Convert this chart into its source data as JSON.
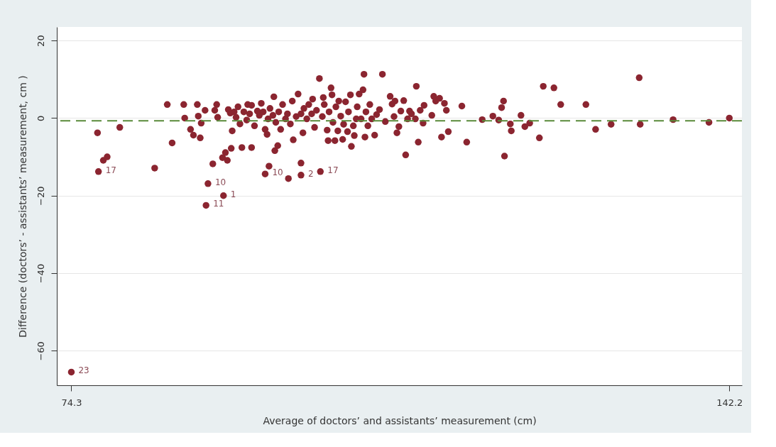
{
  "chart_data": {
    "type": "scatter",
    "xlabel": "Average of doctors’ and assistants’ measurement (cm)",
    "ylabel": "Difference (doctors’ - assistants’ measurement, cm )",
    "x": [
      74.3,
      77.0,
      77.1,
      77.6,
      78.0,
      79.3,
      82.9,
      84.2,
      84.7,
      85.9,
      86.0,
      86.6,
      86.9,
      87.3,
      87.4,
      87.6,
      87.7,
      88.1,
      88.2,
      88.4,
      90.0,
      88.9,
      89.1,
      89.3,
      89.4,
      89.9,
      90.2,
      90.4,
      90.5,
      90.7,
      90.8,
      90.9,
      91.1,
      91.3,
      91.5,
      91.7,
      91.9,
      92.1,
      92.4,
      92.5,
      92.7,
      92.9,
      92.9,
      93.2,
      93.5,
      93.7,
      93.9,
      94.1,
      94.3,
      94.3,
      94.5,
      94.6,
      94.7,
      94.8,
      95.1,
      95.2,
      95.3,
      95.4,
      95.6,
      95.7,
      95.9,
      96.1,
      96.4,
      96.6,
      96.7,
      96.9,
      97.1,
      97.2,
      97.5,
      97.7,
      98.0,
      98.0,
      98.0,
      98.2,
      98.3,
      98.6,
      98.8,
      99.1,
      99.2,
      99.4,
      99.6,
      99.9,
      100.0,
      100.2,
      100.3,
      100.4,
      100.7,
      100.8,
      100.9,
      101.1,
      101.2,
      101.3,
      101.5,
      101.6,
      101.8,
      101.9,
      102.1,
      102.3,
      102.4,
      102.6,
      102.8,
      102.9,
      103.1,
      103.2,
      103.4,
      103.5,
      103.7,
      103.8,
      104.0,
      104.2,
      104.4,
      104.5,
      104.6,
      104.7,
      104.9,
      105.1,
      105.3,
      105.6,
      105.8,
      106.1,
      106.4,
      106.7,
      107.2,
      107.4,
      107.6,
      107.7,
      107.9,
      108.1,
      108.3,
      108.6,
      108.8,
      109.0,
      109.2,
      109.4,
      109.8,
      109.9,
      110.1,
      110.3,
      110.6,
      110.7,
      111.5,
      111.7,
      111.9,
      112.3,
      112.5,
      112.8,
      113.0,
      113.2,
      114.6,
      115.1,
      116.7,
      117.8,
      118.4,
      118.7,
      118.9,
      119.0,
      119.6,
      119.7,
      120.7,
      121.1,
      121.6,
      122.6,
      123.0,
      124.1,
      124.8,
      127.4,
      128.4,
      130.0,
      132.9,
      133.0,
      136.4,
      140.1,
      142.2
    ],
    "series": [
      {
        "color": "#8b2530",
        "values": [
          -65.5,
          -3.8,
          -13.8,
          -10.9,
          -10.0,
          -2.4,
          -12.9,
          3.5,
          -6.4,
          3.5,
          0,
          -2.9,
          -4.4,
          3.5,
          0.5,
          -5.1,
          -1.3,
          2.0,
          -22.5,
          -16.9,
          -20.0,
          -11.8,
          2.0,
          3.5,
          0.2,
          -10.2,
          -8.9,
          -10.9,
          2.2,
          1.3,
          -7.8,
          -3.3,
          1.6,
          0.2,
          2.9,
          -1.5,
          -7.6,
          1.6,
          -0.5,
          3.5,
          1.1,
          -7.6,
          3.3,
          -2.0,
          1.8,
          0.7,
          3.8,
          1.6,
          -14.4,
          -2.9,
          -4.2,
          -0.2,
          -12.4,
          2.5,
          0.7,
          5.5,
          -8.4,
          -1.1,
          -7.1,
          1.6,
          -2.9,
          3.5,
          -0.2,
          1.1,
          -15.6,
          -1.5,
          4.4,
          -5.6,
          0.4,
          6.2,
          1.1,
          -11.6,
          -14.7,
          -3.8,
          2.5,
          -0.2,
          3.5,
          1.1,
          4.9,
          -2.4,
          2.0,
          10.2,
          -13.8,
          0.4,
          5.3,
          3.5,
          -3.1,
          -5.8,
          1.6,
          7.8,
          6.0,
          -1.1,
          -5.8,
          2.9,
          -3.3,
          4.4,
          0.5,
          -5.5,
          -1.6,
          4.2,
          -3.5,
          1.6,
          6.0,
          -7.3,
          -2.0,
          -4.5,
          -0.2,
          2.9,
          6.2,
          -0.2,
          7.3,
          11.3,
          -4.9,
          1.6,
          -2.0,
          3.5,
          -0.2,
          -4.4,
          0.9,
          2.2,
          11.3,
          -0.9,
          5.6,
          3.6,
          0.4,
          4.4,
          -3.8,
          -2.2,
          1.8,
          4.5,
          -9.5,
          -0.2,
          1.8,
          1.1,
          -0.2,
          8.2,
          -6.2,
          2.0,
          -1.3,
          3.3,
          0.7,
          5.6,
          4.4,
          5.1,
          -4.9,
          3.8,
          2.0,
          -3.5,
          3.1,
          -6.2,
          -0.4,
          0.5,
          -0.5,
          2.7,
          4.4,
          -9.8,
          -1.5,
          -3.3,
          0.7,
          -2.2,
          -1.3,
          -5.1,
          8.2,
          7.8,
          3.5,
          3.5,
          -2.9,
          -1.6,
          10.4,
          -1.6,
          -0.4,
          -1.1,
          0
        ]
      }
    ],
    "marker": "circle",
    "grid": "y",
    "xlim": [
      72.8,
      143.5
    ],
    "ylim": [
      -68.9,
      23.5
    ],
    "xticks": [
      74.3,
      142.2
    ],
    "yticks": [
      -60,
      -40,
      -20,
      0,
      20
    ],
    "ref_lines": [
      {
        "axis": "y",
        "value": -0.7,
        "color": "#5a8a3a",
        "line_style": "dashed"
      }
    ],
    "annotations": [
      {
        "text": "23",
        "x": 74.3,
        "y": -65.5
      },
      {
        "text": "17",
        "x": 77.1,
        "y": -13.8
      },
      {
        "text": "10",
        "x": 88.4,
        "y": -16.9
      },
      {
        "text": "1",
        "x": 90.0,
        "y": -20.0
      },
      {
        "text": "11",
        "x": 88.2,
        "y": -22.5
      },
      {
        "text": "10",
        "x": 94.3,
        "y": -14.4
      },
      {
        "text": "2",
        "x": 98.0,
        "y": -14.7
      },
      {
        "text": "17",
        "x": 100.0,
        "y": -13.8
      }
    ]
  }
}
